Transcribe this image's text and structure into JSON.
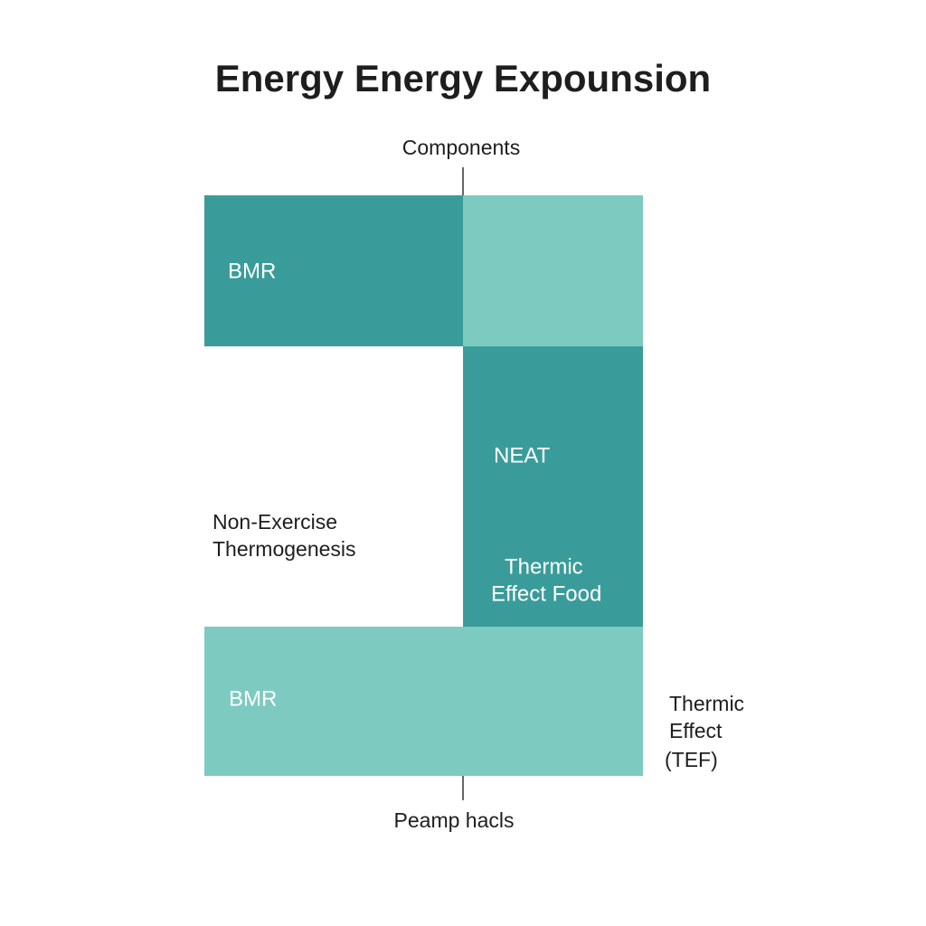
{
  "title": "Energy Energy Expounsion",
  "top_label": "Components",
  "bottom_label": "Peamp hacls",
  "blocks": [
    {
      "lines": [
        "BMR"
      ]
    },
    {
      "lines": [
        "NEAT"
      ]
    },
    {
      "lines": [
        "Thermic",
        "Effect Food"
      ]
    },
    {
      "lines": [
        "BMR"
      ]
    }
  ],
  "annotations": [
    {
      "lines": [
        "Non-Exercise",
        "Thermogenesis"
      ]
    },
    {
      "lines": [
        "Thermic",
        "Effect",
        "(TEF)"
      ]
    }
  ]
}
